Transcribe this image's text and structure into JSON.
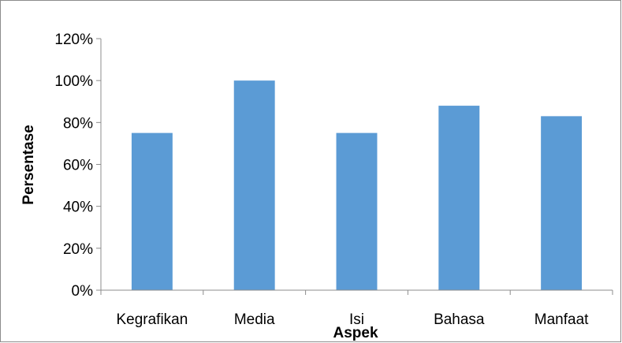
{
  "chart_data": {
    "type": "bar",
    "title": "",
    "xlabel": "Aspek",
    "ylabel": "Persentase",
    "categories": [
      "Kegrafikan",
      "Media",
      "Isi",
      "Bahasa",
      "Manfaat"
    ],
    "values": [
      75,
      100,
      75,
      88,
      83
    ],
    "ylim": [
      0,
      120
    ],
    "yticks": [
      0,
      20,
      40,
      60,
      80,
      100,
      120
    ],
    "ytick_suffix": "%",
    "grid": false,
    "legend": "none",
    "bar_color": "#5b9bd5",
    "axis_color": "#8c8c8c"
  }
}
